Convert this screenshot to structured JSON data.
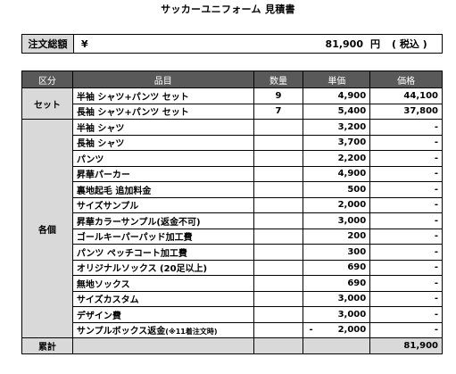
{
  "title": "サッカーユニフォーム 見積書",
  "total": {
    "label": "注文総額",
    "currency": "¥",
    "amount": "81,900",
    "unit": "円",
    "tax_note": "( 税込 )"
  },
  "table": {
    "headers": [
      "区分",
      "品目",
      "数量",
      "単価",
      "価格"
    ],
    "set": {
      "category": "セット",
      "rows": [
        {
          "item": "半袖 シャツ+パンツ セット",
          "qty": "9",
          "unit_price": "4,900",
          "price": "44,100"
        },
        {
          "item": "長袖 シャツ+パンツ セット",
          "qty": "7",
          "unit_price": "5,400",
          "price": "37,800"
        }
      ]
    },
    "individual": {
      "category": "各個",
      "rows": [
        {
          "item": "半袖 シャツ",
          "qty": "",
          "unit_price": "3,200",
          "price": "-"
        },
        {
          "item": "長袖 シャツ",
          "qty": "",
          "unit_price": "3,700",
          "price": "-"
        },
        {
          "item": "パンツ",
          "qty": "",
          "unit_price": "2,200",
          "price": "-"
        },
        {
          "item": "昇華パーカー",
          "qty": "",
          "unit_price": "4,900",
          "price": "-"
        },
        {
          "item": "裏地起毛 追加料金",
          "qty": "",
          "unit_price": "500",
          "price": "-"
        },
        {
          "item": "サイズサンプル",
          "qty": "",
          "unit_price": "2,000",
          "price": "-"
        },
        {
          "item": "昇華カラーサンプル(返金不可)",
          "qty": "",
          "unit_price": "3,000",
          "price": "-"
        },
        {
          "item": "ゴールキーパーパッド加工費",
          "qty": "",
          "unit_price": "200",
          "price": "-"
        },
        {
          "item": "パンツ ペッチコート加工費",
          "qty": "",
          "unit_price": "300",
          "price": "-"
        },
        {
          "item": "オリジナルソックス (20足以上)",
          "qty": "",
          "unit_price": "690",
          "price": "-"
        },
        {
          "item": "無地ソックス",
          "qty": "",
          "unit_price": "690",
          "price": "-"
        },
        {
          "item": "サイズカスタム",
          "qty": "",
          "unit_price": "3,000",
          "price": "-"
        },
        {
          "item": "デザイン費",
          "qty": "",
          "unit_price": "3,000",
          "price": "-"
        }
      ],
      "last_row": {
        "item": "サンプルボックス返金",
        "item_note": "(※11着注文時)",
        "qty": "",
        "unit_price_sign": "-",
        "unit_price": "2,000",
        "price": "-"
      }
    },
    "sum": {
      "label": "累計",
      "price": "81,900"
    }
  }
}
